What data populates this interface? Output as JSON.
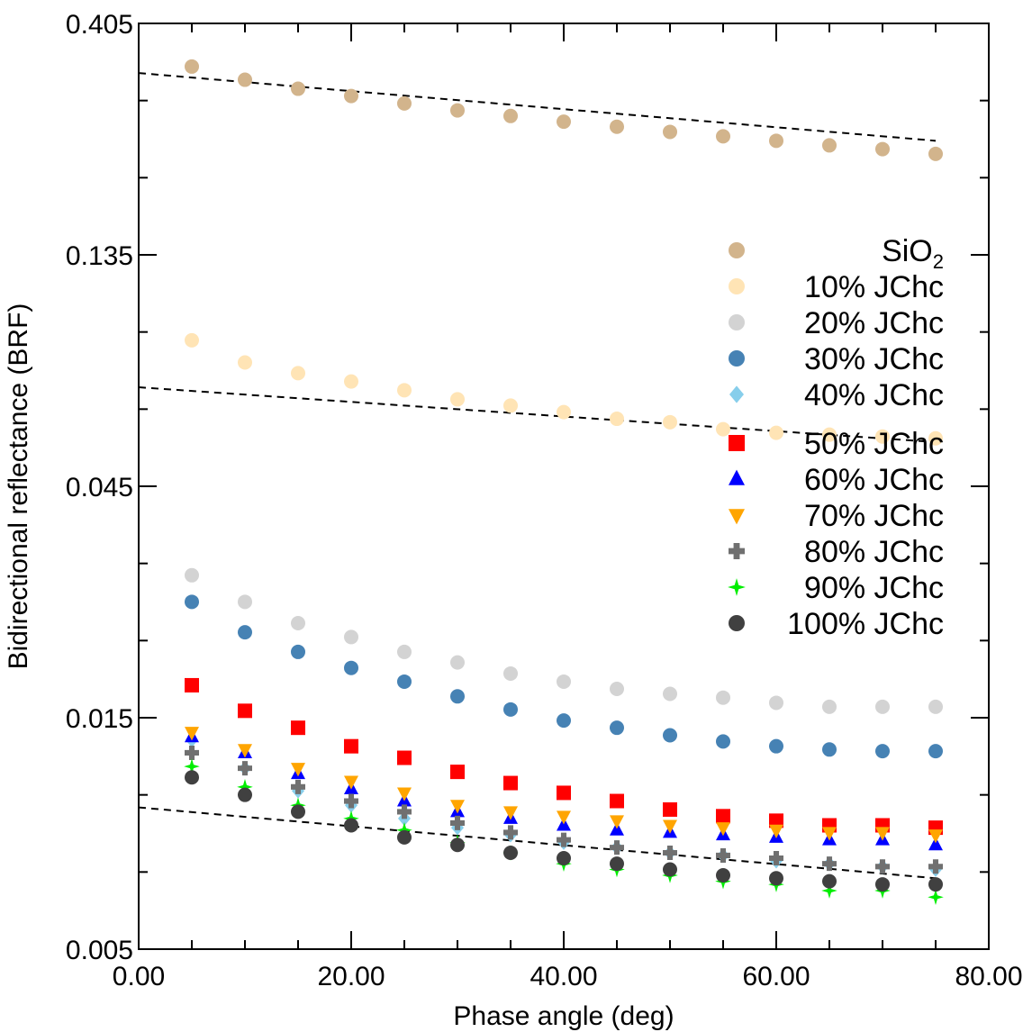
{
  "chart_data": {
    "type": "scatter",
    "xlabel": "Phase angle (deg)",
    "ylabel": "Bidirectional reflectance (BRF)",
    "xlim": [
      0,
      80
    ],
    "ylim": [
      0.005,
      0.405
    ],
    "yscale": "log",
    "x_ticks": [
      "0.00",
      "20.00",
      "40.00",
      "60.00",
      "80.00"
    ],
    "y_ticks": [
      "0.405",
      "0.135",
      "0.045",
      "0.015",
      "0.005"
    ],
    "grid": false,
    "legend_position": "right",
    "x": [
      5,
      10,
      15,
      20,
      25,
      30,
      35,
      40,
      45,
      50,
      55,
      60,
      65,
      70,
      75
    ],
    "series": [
      {
        "name_main": "SiO",
        "name_sub": "2",
        "name": "SiO2",
        "marker": "circle",
        "color": "#d2b48c",
        "values": [
          0.33,
          0.31,
          0.297,
          0.287,
          0.277,
          0.268,
          0.261,
          0.254,
          0.248,
          0.242,
          0.237,
          0.232,
          0.227,
          0.223,
          0.218
        ]
      },
      {
        "name": "10% JChc",
        "marker": "circle",
        "color": "#ffe4b5",
        "values": [
          0.09,
          0.081,
          0.077,
          0.074,
          0.071,
          0.068,
          0.066,
          0.064,
          0.062,
          0.061,
          0.059,
          0.058,
          0.0575,
          0.057,
          0.0565
        ]
      },
      {
        "name": "20% JChc",
        "marker": "circle",
        "color": "#d3d3d3",
        "values": [
          0.0295,
          0.026,
          0.0235,
          0.022,
          0.0205,
          0.0195,
          0.0185,
          0.0178,
          0.0172,
          0.0168,
          0.0165,
          0.0161,
          0.0158,
          0.0158,
          0.0158
        ]
      },
      {
        "name": "30% JChc",
        "marker": "circle",
        "color": "#4682b4",
        "values": [
          0.026,
          0.0225,
          0.0205,
          0.019,
          0.0178,
          0.0166,
          0.0156,
          0.0148,
          0.0143,
          0.0138,
          0.0134,
          0.0131,
          0.0129,
          0.0128,
          0.0128
        ]
      },
      {
        "name": "40% JChc",
        "marker": "diamond",
        "color": "#87ceeb",
        "values": [
          0.0135,
          0.0118,
          0.0106,
          0.0099,
          0.0093,
          0.0089,
          0.0086,
          0.0083,
          0.0081,
          0.0079,
          0.0078,
          0.0076,
          0.0075,
          0.0074,
          0.0073
        ]
      },
      {
        "name": "50% JChc",
        "marker": "square",
        "color": "#ff0000",
        "values": [
          0.0175,
          0.0155,
          0.0143,
          0.0131,
          0.0124,
          0.0116,
          0.011,
          0.0105,
          0.0101,
          0.0097,
          0.0094,
          0.0092,
          0.009,
          0.009,
          0.0089
        ]
      },
      {
        "name": "60% JChc",
        "marker": "triangle-up",
        "color": "#0000ff",
        "values": [
          0.0137,
          0.0127,
          0.0115,
          0.0107,
          0.0101,
          0.0096,
          0.0093,
          0.009,
          0.0088,
          0.0087,
          0.0086,
          0.0085,
          0.0084,
          0.0084,
          0.0082
        ]
      },
      {
        "name": "70% JChc",
        "marker": "triangle-down",
        "color": "#ffa500",
        "values": [
          0.014,
          0.0129,
          0.0118,
          0.0111,
          0.0105,
          0.0099,
          0.0096,
          0.0094,
          0.0092,
          0.009,
          0.0089,
          0.0088,
          0.0087,
          0.0087,
          0.0086
        ]
      },
      {
        "name": "80% JChc",
        "marker": "plus",
        "color": "#707070",
        "values": [
          0.0127,
          0.0118,
          0.0108,
          0.0101,
          0.0096,
          0.0091,
          0.0087,
          0.0084,
          0.0081,
          0.0079,
          0.0078,
          0.0077,
          0.0075,
          0.0074,
          0.0074
        ]
      },
      {
        "name": "90% JChc",
        "marker": "star",
        "color": "#00ee00",
        "values": [
          0.0119,
          0.0108,
          0.0099,
          0.0093,
          0.0088,
          0.0083,
          0.0079,
          0.0075,
          0.0073,
          0.0071,
          0.0069,
          0.0068,
          0.0066,
          0.0066,
          0.0064
        ]
      },
      {
        "name": "100% JChc",
        "marker": "circle",
        "color": "#404040",
        "values": [
          0.0113,
          0.0104,
          0.0096,
          0.009,
          0.0085,
          0.0082,
          0.0079,
          0.0077,
          0.0075,
          0.0073,
          0.0071,
          0.007,
          0.0069,
          0.0068,
          0.0068
        ]
      }
    ],
    "fit_lines": [
      {
        "line_style": "dashed",
        "color": "#000000",
        "x": [
          0,
          75
        ],
        "y": [
          0.32,
          0.232
        ]
      },
      {
        "line_style": "dashed",
        "color": "#000000",
        "x": [
          0,
          75
        ],
        "y": [
          0.072,
          0.0555
        ]
      },
      {
        "line_style": "dashed",
        "color": "#000000",
        "x": [
          0,
          75
        ],
        "y": [
          0.0098,
          0.007
        ]
      }
    ]
  }
}
